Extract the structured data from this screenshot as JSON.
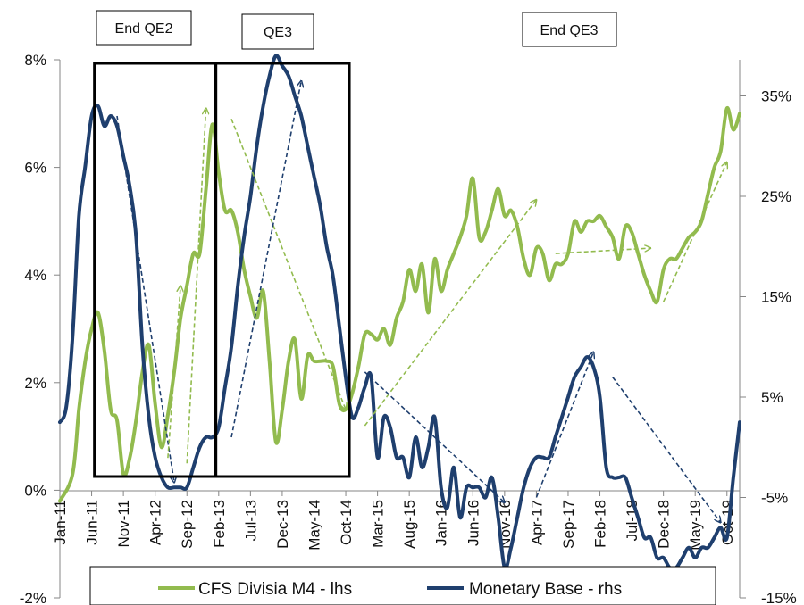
{
  "chart_data": {
    "type": "line",
    "title": "",
    "xlabel": "",
    "x_tick_labels": [
      "Jan-11",
      "Jun-11",
      "Nov-11",
      "Apr-12",
      "Sep-12",
      "Feb-13",
      "Jul-13",
      "Dec-13",
      "May-14",
      "Oct-14",
      "Mar-15",
      "Aug-15",
      "Jan-16",
      "Jun-16",
      "Nov-16",
      "Apr-17",
      "Sep-17",
      "Feb-18",
      "Jul-18",
      "Dec-18",
      "May-19",
      "Oct-19"
    ],
    "x_range": [
      "Jan-11",
      "Dec-19"
    ],
    "left_axis": {
      "ylabel": "",
      "ylim": [
        -2,
        8
      ],
      "ticks": [
        -2,
        0,
        2,
        4,
        6,
        8
      ],
      "tick_labels": [
        "-2%",
        "0%",
        "2%",
        "4%",
        "6%",
        "8%"
      ]
    },
    "right_axis": {
      "ylabel": "",
      "ylim": [
        -15,
        38.6
      ],
      "ticks": [
        -15,
        -5,
        5,
        15,
        25,
        35
      ],
      "tick_labels": [
        "-15%",
        "-5%",
        "5%",
        "15%",
        "25%",
        "35%"
      ]
    },
    "grid": false,
    "legend_position": "bottom",
    "series": [
      {
        "name": "CFS Divisia M4 - lhs",
        "axis": "left",
        "color": "#92bb4e",
        "points": [
          [
            "Jan-11",
            -0.2
          ],
          [
            "Mar-11",
            0.3
          ],
          [
            "Apr-11",
            1.5
          ],
          [
            "May-11",
            2.4
          ],
          [
            "Jun-11",
            3.0
          ],
          [
            "Jul-11",
            3.3
          ],
          [
            "Aug-11",
            2.6
          ],
          [
            "Sep-11",
            1.5
          ],
          [
            "Oct-11",
            1.3
          ],
          [
            "Nov-11",
            0.3
          ],
          [
            "Dec-11",
            0.6
          ],
          [
            "Jan-12",
            1.3
          ],
          [
            "Feb-12",
            2.2
          ],
          [
            "Mar-12",
            2.7
          ],
          [
            "Apr-12",
            1.6
          ],
          [
            "May-12",
            0.8
          ],
          [
            "Jun-12",
            1.4
          ],
          [
            "Jul-12",
            2.2
          ],
          [
            "Aug-12",
            3.2
          ],
          [
            "Sep-12",
            3.8
          ],
          [
            "Oct-12",
            4.4
          ],
          [
            "Nov-12",
            4.4
          ],
          [
            "Dec-12",
            5.6
          ],
          [
            "Jan-13",
            6.8
          ],
          [
            "Feb-13",
            5.9
          ],
          [
            "Mar-13",
            5.2
          ],
          [
            "Apr-13",
            5.2
          ],
          [
            "May-13",
            4.8
          ],
          [
            "Jun-13",
            4.1
          ],
          [
            "Jul-13",
            3.6
          ],
          [
            "Aug-13",
            3.2
          ],
          [
            "Sep-13",
            3.7
          ],
          [
            "Oct-13",
            2.4
          ],
          [
            "Nov-13",
            0.9
          ],
          [
            "Dec-13",
            1.5
          ],
          [
            "Jan-14",
            2.4
          ],
          [
            "Feb-14",
            2.8
          ],
          [
            "Mar-14",
            1.7
          ],
          [
            "Apr-14",
            2.5
          ],
          [
            "May-14",
            2.4
          ],
          [
            "Jun-14",
            2.4
          ],
          [
            "Jul-14",
            2.4
          ],
          [
            "Aug-14",
            2.3
          ],
          [
            "Sep-14",
            1.6
          ],
          [
            "Oct-14",
            1.5
          ],
          [
            "Nov-14",
            1.8
          ],
          [
            "Dec-14",
            2.3
          ],
          [
            "Jan-15",
            2.9
          ],
          [
            "Feb-15",
            2.9
          ],
          [
            "Mar-15",
            2.8
          ],
          [
            "Apr-15",
            3.0
          ],
          [
            "May-15",
            2.7
          ],
          [
            "Jun-15",
            3.2
          ],
          [
            "Jul-15",
            3.5
          ],
          [
            "Aug-15",
            4.1
          ],
          [
            "Sep-15",
            3.7
          ],
          [
            "Oct-15",
            4.2
          ],
          [
            "Nov-15",
            3.3
          ],
          [
            "Dec-15",
            4.3
          ],
          [
            "Jan-16",
            3.7
          ],
          [
            "Feb-16",
            4.1
          ],
          [
            "Mar-16",
            4.4
          ],
          [
            "Apr-16",
            4.7
          ],
          [
            "May-16",
            5.1
          ],
          [
            "Jun-16",
            5.8
          ],
          [
            "Jul-16",
            4.7
          ],
          [
            "Aug-16",
            4.8
          ],
          [
            "Sep-16",
            5.2
          ],
          [
            "Oct-16",
            5.6
          ],
          [
            "Nov-16",
            5.1
          ],
          [
            "Dec-16",
            5.2
          ],
          [
            "Jan-17",
            4.9
          ],
          [
            "Feb-17",
            4.3
          ],
          [
            "Mar-17",
            4.0
          ],
          [
            "Apr-17",
            4.5
          ],
          [
            "May-17",
            4.4
          ],
          [
            "Jun-17",
            3.9
          ],
          [
            "Jul-17",
            4.2
          ],
          [
            "Aug-17",
            4.2
          ],
          [
            "Sep-17",
            4.4
          ],
          [
            "Oct-17",
            5.0
          ],
          [
            "Nov-17",
            4.8
          ],
          [
            "Dec-17",
            5.0
          ],
          [
            "Jan-18",
            5.0
          ],
          [
            "Feb-18",
            5.1
          ],
          [
            "Mar-18",
            4.9
          ],
          [
            "Apr-18",
            4.7
          ],
          [
            "May-18",
            4.3
          ],
          [
            "Jun-18",
            4.9
          ],
          [
            "Jul-18",
            4.8
          ],
          [
            "Aug-18",
            4.4
          ],
          [
            "Sep-18",
            4.0
          ],
          [
            "Oct-18",
            3.7
          ],
          [
            "Nov-18",
            3.5
          ],
          [
            "Dec-18",
            4.1
          ],
          [
            "Jan-19",
            4.3
          ],
          [
            "Feb-19",
            4.3
          ],
          [
            "Mar-19",
            4.5
          ],
          [
            "Apr-19",
            4.7
          ],
          [
            "May-19",
            4.8
          ],
          [
            "Jun-19",
            5.0
          ],
          [
            "Jul-19",
            5.5
          ],
          [
            "Aug-19",
            6.0
          ],
          [
            "Sep-19",
            6.3
          ],
          [
            "Oct-19",
            7.1
          ],
          [
            "Nov-19",
            6.7
          ],
          [
            "Dec-19",
            7.0
          ]
        ]
      },
      {
        "name": "Monetary Base - rhs",
        "axis": "right",
        "color": "#1f3f6e",
        "points": [
          [
            "Jan-11",
            2.5
          ],
          [
            "Feb-11",
            4
          ],
          [
            "Mar-11",
            11
          ],
          [
            "Apr-11",
            23
          ],
          [
            "May-11",
            28
          ],
          [
            "Jun-11",
            33
          ],
          [
            "Jul-11",
            34
          ],
          [
            "Aug-11",
            32
          ],
          [
            "Sep-11",
            33
          ],
          [
            "Oct-11",
            32
          ],
          [
            "Nov-11",
            29
          ],
          [
            "Dec-11",
            26
          ],
          [
            "Jan-12",
            21
          ],
          [
            "Feb-12",
            10
          ],
          [
            "Mar-12",
            3
          ],
          [
            "Apr-12",
            -1
          ],
          [
            "May-12",
            -3
          ],
          [
            "Jun-12",
            -4
          ],
          [
            "Jul-12",
            -4
          ],
          [
            "Aug-12",
            -4
          ],
          [
            "Sep-12",
            -4
          ],
          [
            "Oct-12",
            -2
          ],
          [
            "Nov-12",
            0
          ],
          [
            "Dec-12",
            1
          ],
          [
            "Jan-13",
            1
          ],
          [
            "Feb-13",
            2
          ],
          [
            "Mar-13",
            6
          ],
          [
            "Apr-13",
            10
          ],
          [
            "May-13",
            16
          ],
          [
            "Jun-13",
            21
          ],
          [
            "Jul-13",
            25
          ],
          [
            "Aug-13",
            30
          ],
          [
            "Sep-13",
            34
          ],
          [
            "Oct-13",
            37
          ],
          [
            "Nov-13",
            39
          ],
          [
            "Dec-13",
            38
          ],
          [
            "Jan-14",
            37
          ],
          [
            "Feb-14",
            35
          ],
          [
            "Mar-14",
            33
          ],
          [
            "Apr-14",
            30
          ],
          [
            "May-14",
            27
          ],
          [
            "Jun-14",
            24
          ],
          [
            "Jul-14",
            20
          ],
          [
            "Aug-14",
            17
          ],
          [
            "Sep-14",
            12
          ],
          [
            "Oct-14",
            7
          ],
          [
            "Nov-14",
            3
          ],
          [
            "Dec-14",
            4
          ],
          [
            "Jan-15",
            6
          ],
          [
            "Feb-15",
            7
          ],
          [
            "Mar-15",
            -1
          ],
          [
            "Apr-15",
            3
          ],
          [
            "May-15",
            2
          ],
          [
            "Jun-15",
            -1
          ],
          [
            "Jul-15",
            -1
          ],
          [
            "Aug-15",
            -3
          ],
          [
            "Sep-15",
            1
          ],
          [
            "Oct-15",
            -2
          ],
          [
            "Nov-15",
            0
          ],
          [
            "Dec-15",
            3
          ],
          [
            "Jan-16",
            -4
          ],
          [
            "Feb-16",
            -6
          ],
          [
            "Mar-16",
            -2
          ],
          [
            "Apr-16",
            -7
          ],
          [
            "May-16",
            -4
          ],
          [
            "Jun-16",
            -4
          ],
          [
            "Jul-16",
            -4
          ],
          [
            "Aug-16",
            -5
          ],
          [
            "Sep-16",
            -3
          ],
          [
            "Oct-16",
            -7
          ],
          [
            "Nov-16",
            -12
          ],
          [
            "Dec-16",
            -10
          ],
          [
            "Jan-17",
            -7
          ],
          [
            "Feb-17",
            -4
          ],
          [
            "Mar-17",
            -2
          ],
          [
            "Apr-17",
            -1
          ],
          [
            "May-17",
            -1
          ],
          [
            "Jun-17",
            -1
          ],
          [
            "Jul-17",
            1
          ],
          [
            "Aug-17",
            3
          ],
          [
            "Sep-17",
            5
          ],
          [
            "Oct-17",
            7
          ],
          [
            "Nov-17",
            8
          ],
          [
            "Dec-17",
            9
          ],
          [
            "Jan-18",
            8
          ],
          [
            "Feb-18",
            5
          ],
          [
            "Mar-18",
            -2
          ],
          [
            "Apr-18",
            -3
          ],
          [
            "May-18",
            -3
          ],
          [
            "Jun-18",
            -3
          ],
          [
            "Jul-18",
            -5
          ],
          [
            "Aug-18",
            -7
          ],
          [
            "Sep-18",
            -9
          ],
          [
            "Oct-18",
            -9
          ],
          [
            "Nov-18",
            -11
          ],
          [
            "Dec-18",
            -11
          ],
          [
            "Jan-19",
            -12
          ],
          [
            "Feb-19",
            -12
          ],
          [
            "Mar-19",
            -11
          ],
          [
            "Apr-19",
            -10
          ],
          [
            "May-19",
            -11
          ],
          [
            "Jun-19",
            -10
          ],
          [
            "Jul-19",
            -10
          ],
          [
            "Aug-19",
            -9
          ],
          [
            "Sep-19",
            -8
          ],
          [
            "Oct-19",
            -9
          ],
          [
            "Nov-19",
            -3
          ],
          [
            "Dec-19",
            2.5
          ]
        ]
      }
    ],
    "trend_arrows": [
      {
        "series": "Monetary Base - rhs",
        "from": [
          "Oct-11",
          33
        ],
        "to": [
          "Jul-12",
          -3.5
        ]
      },
      {
        "series": "CFS Divisia M4 - lhs",
        "from": [
          "Jun-12",
          0.6
        ],
        "to": [
          "Aug-12",
          3.8
        ]
      },
      {
        "series": "CFS Divisia M4 - lhs",
        "from": [
          "Sep-12",
          0.5
        ],
        "to": [
          "Dec-12",
          7.1
        ]
      },
      {
        "series": "CFS Divisia M4 - lhs",
        "from": [
          "Apr-13",
          6.9
        ],
        "to": [
          "Oct-14",
          1.5
        ]
      },
      {
        "series": "Monetary Base - rhs",
        "from": [
          "Apr-13",
          1
        ],
        "to": [
          "Mar-14",
          36.5
        ]
      },
      {
        "series": "CFS Divisia M4 - lhs",
        "from": [
          "Jan-15",
          1.2
        ],
        "to": [
          "Apr-17",
          5.4
        ]
      },
      {
        "series": "Monetary Base - rhs",
        "from": [
          "Jan-15",
          7.5
        ],
        "to": [
          "Nov-16",
          -5.5
        ]
      },
      {
        "series": "Monetary Base - rhs",
        "from": [
          "Apr-17",
          -5
        ],
        "to": [
          "Jan-18",
          9.5
        ]
      },
      {
        "series": "CFS Divisia M4 - lhs",
        "from": [
          "Jul-17",
          4.4
        ],
        "to": [
          "Oct-18",
          4.5
        ]
      },
      {
        "series": "CFS Divisia M4 - lhs",
        "from": [
          "Dec-18",
          3.5
        ],
        "to": [
          "Oct-19",
          6.1
        ]
      },
      {
        "series": "Monetary Base - rhs",
        "from": [
          "Apr-18",
          7
        ],
        "to": [
          "Sep-19",
          -7.5
        ]
      }
    ],
    "annotations": [
      {
        "text": "End QE2",
        "box_from": "Jul-11",
        "box_to": "Jan-13"
      },
      {
        "text": "QE3",
        "box_from": "Feb-13",
        "box_to": "Oct-14"
      },
      {
        "text": "End QE3"
      }
    ]
  }
}
